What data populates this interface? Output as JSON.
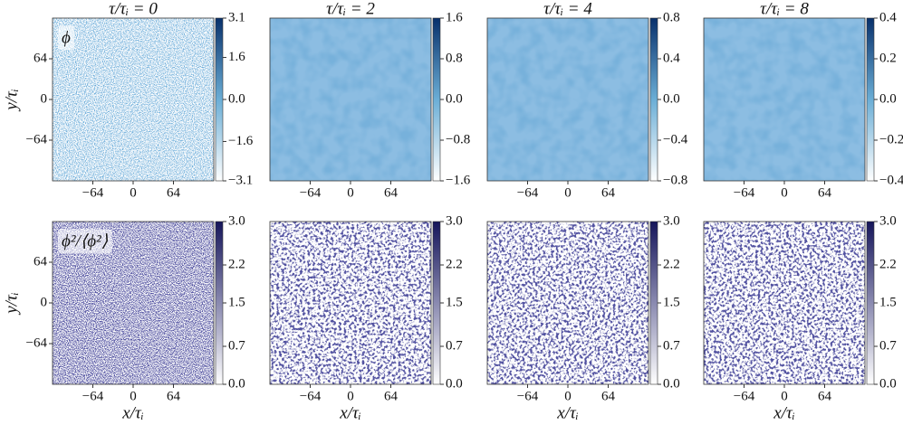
{
  "chart_data": [
    {
      "type": "heatmap",
      "title": "τ/τᵢ = 0",
      "annotation": "ϕ",
      "ylabel": "y/τᵢ",
      "color": "#08306b",
      "xlim": [
        -128,
        128
      ],
      "ylim": [
        -128,
        128
      ],
      "xticks": [
        {
          "value": -64,
          "label": "−64"
        },
        0,
        64
      ],
      "yticks": [
        {
          "value": -64,
          "label": "−64"
        },
        0,
        64
      ],
      "clim": [
        -3.1,
        3.1
      ],
      "cticks": [
        {
          "value": -3.1,
          "label": "−3.1"
        },
        {
          "value": -1.6,
          "label": "−1.6"
        },
        {
          "value": 0,
          "label": "0.0"
        },
        1.6,
        3.1
      ]
    },
    {
      "type": "heatmap",
      "title": "τ/τᵢ = 2",
      "color": "#08306b",
      "xlim": [
        -128,
        128
      ],
      "ylim": [
        -128,
        128
      ],
      "xticks": [
        {
          "value": -64,
          "label": "−64"
        },
        0,
        64
      ],
      "clim": [
        -1.6,
        1.6
      ],
      "cticks": [
        {
          "value": -1.6,
          "label": "−1.6"
        },
        {
          "value": -0.8,
          "label": "−0.8"
        },
        {
          "value": 0,
          "label": "0.0"
        },
        0.8,
        1.6
      ]
    },
    {
      "type": "heatmap",
      "title": "τ/τᵢ = 4",
      "color": "#08306b",
      "xlim": [
        -128,
        128
      ],
      "ylim": [
        -128,
        128
      ],
      "xticks": [
        {
          "value": -64,
          "label": "−64"
        },
        0,
        64
      ],
      "clim": [
        -0.8,
        0.8
      ],
      "cticks": [
        {
          "value": -0.8,
          "label": "−0.8"
        },
        {
          "value": -0.4,
          "label": "−0.4"
        },
        {
          "value": 0,
          "label": "0.0"
        },
        0.4,
        0.8
      ]
    },
    {
      "type": "heatmap",
      "title": "τ/τᵢ = 8",
      "color": "#08306b",
      "xlim": [
        -128,
        128
      ],
      "ylim": [
        -128,
        128
      ],
      "xticks": [
        {
          "value": -64,
          "label": "−64"
        },
        0,
        64
      ],
      "clim": [
        -0.4,
        0.4
      ],
      "cticks": [
        {
          "value": -0.4,
          "label": "−0.4"
        },
        {
          "value": -0.2,
          "label": "−0.2"
        },
        {
          "value": 0,
          "label": "0.0"
        },
        0.2,
        0.4
      ]
    },
    {
      "type": "heatmap",
      "annotation": "ϕ²/⟨ϕ²⟩",
      "ylabel": "y/τᵢ",
      "xlabel": "x/τᵢ",
      "color": "#15155a",
      "xlim": [
        -128,
        128
      ],
      "ylim": [
        -128,
        128
      ],
      "xticks": [
        {
          "value": -64,
          "label": "−64"
        },
        0,
        64
      ],
      "yticks": [
        {
          "value": -64,
          "label": "−64"
        },
        0,
        64
      ],
      "clim": [
        0,
        3
      ],
      "cticks": [
        {
          "value": 0,
          "label": "0.0"
        },
        0.7,
        1.5,
        2.2,
        {
          "value": 3,
          "label": "3.0"
        }
      ]
    },
    {
      "type": "heatmap",
      "xlabel": "x/τᵢ",
      "color": "#15155a",
      "xlim": [
        -128,
        128
      ],
      "ylim": [
        -128,
        128
      ],
      "xticks": [
        {
          "value": -64,
          "label": "−64"
        },
        0,
        64
      ],
      "clim": [
        0,
        3
      ],
      "cticks": [
        {
          "value": 0,
          "label": "0.0"
        },
        0.7,
        1.5,
        2.2,
        {
          "value": 3,
          "label": "3.0"
        }
      ]
    },
    {
      "type": "heatmap",
      "xlabel": "x/τᵢ",
      "color": "#15155a",
      "xlim": [
        -128,
        128
      ],
      "ylim": [
        -128,
        128
      ],
      "xticks": [
        {
          "value": -64,
          "label": "−64"
        },
        0,
        64
      ],
      "clim": [
        0,
        3
      ],
      "cticks": [
        {
          "value": 0,
          "label": "0.0"
        },
        0.7,
        1.5,
        2.2,
        {
          "value": 3,
          "label": "3.0"
        }
      ]
    },
    {
      "type": "heatmap",
      "xlabel": "x/τᵢ",
      "color": "#15155a",
      "xlim": [
        -128,
        128
      ],
      "ylim": [
        -128,
        128
      ],
      "xticks": [
        {
          "value": -64,
          "label": "−64"
        },
        0,
        64
      ],
      "clim": [
        0,
        3
      ],
      "cticks": [
        {
          "value": 0,
          "label": "0.0"
        },
        0.7,
        1.5,
        2.2,
        {
          "value": 3,
          "label": "3.0"
        }
      ]
    }
  ]
}
